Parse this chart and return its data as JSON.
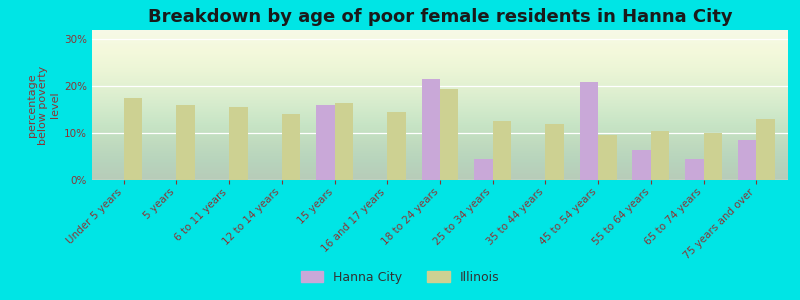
{
  "title": "Breakdown by age of poor female residents in Hanna City",
  "ylabel": "percentage\nbelow poverty\nlevel",
  "categories": [
    "Under 5 years",
    "5 years",
    "6 to 11 years",
    "12 to 14 years",
    "15 years",
    "16 and 17 years",
    "18 to 24 years",
    "25 to 34 years",
    "35 to 44 years",
    "45 to 54 years",
    "55 to 64 years",
    "65 to 74 years",
    "75 years and over"
  ],
  "hanna_city": [
    0,
    0,
    0,
    0,
    16,
    0,
    21.5,
    4.5,
    0,
    21,
    6.5,
    4.5,
    8.5
  ],
  "illinois": [
    17.5,
    16,
    15.5,
    14,
    16.5,
    14.5,
    19.5,
    12.5,
    12,
    9.5,
    10.5,
    10,
    13
  ],
  "ylim": [
    0,
    32
  ],
  "yticks": [
    0,
    10,
    20,
    30
  ],
  "ytick_labels": [
    "0%",
    "10%",
    "20%",
    "30%"
  ],
  "hanna_color": "#c9a8d8",
  "illinois_color": "#cdd192",
  "background_color": "#00e5e5",
  "plot_bg_color_top": "#e8f0d0",
  "plot_bg_color_bottom": "#f4f8e8",
  "title_color": "#1a1a1a",
  "axis_label_color": "#8b3535",
  "tick_label_color": "#8b3535",
  "bar_width": 0.35,
  "legend_hanna": "Hanna City",
  "legend_illinois": "Illinois",
  "title_fontsize": 13,
  "axis_label_fontsize": 8,
  "tick_fontsize": 7.5,
  "legend_fontsize": 9
}
